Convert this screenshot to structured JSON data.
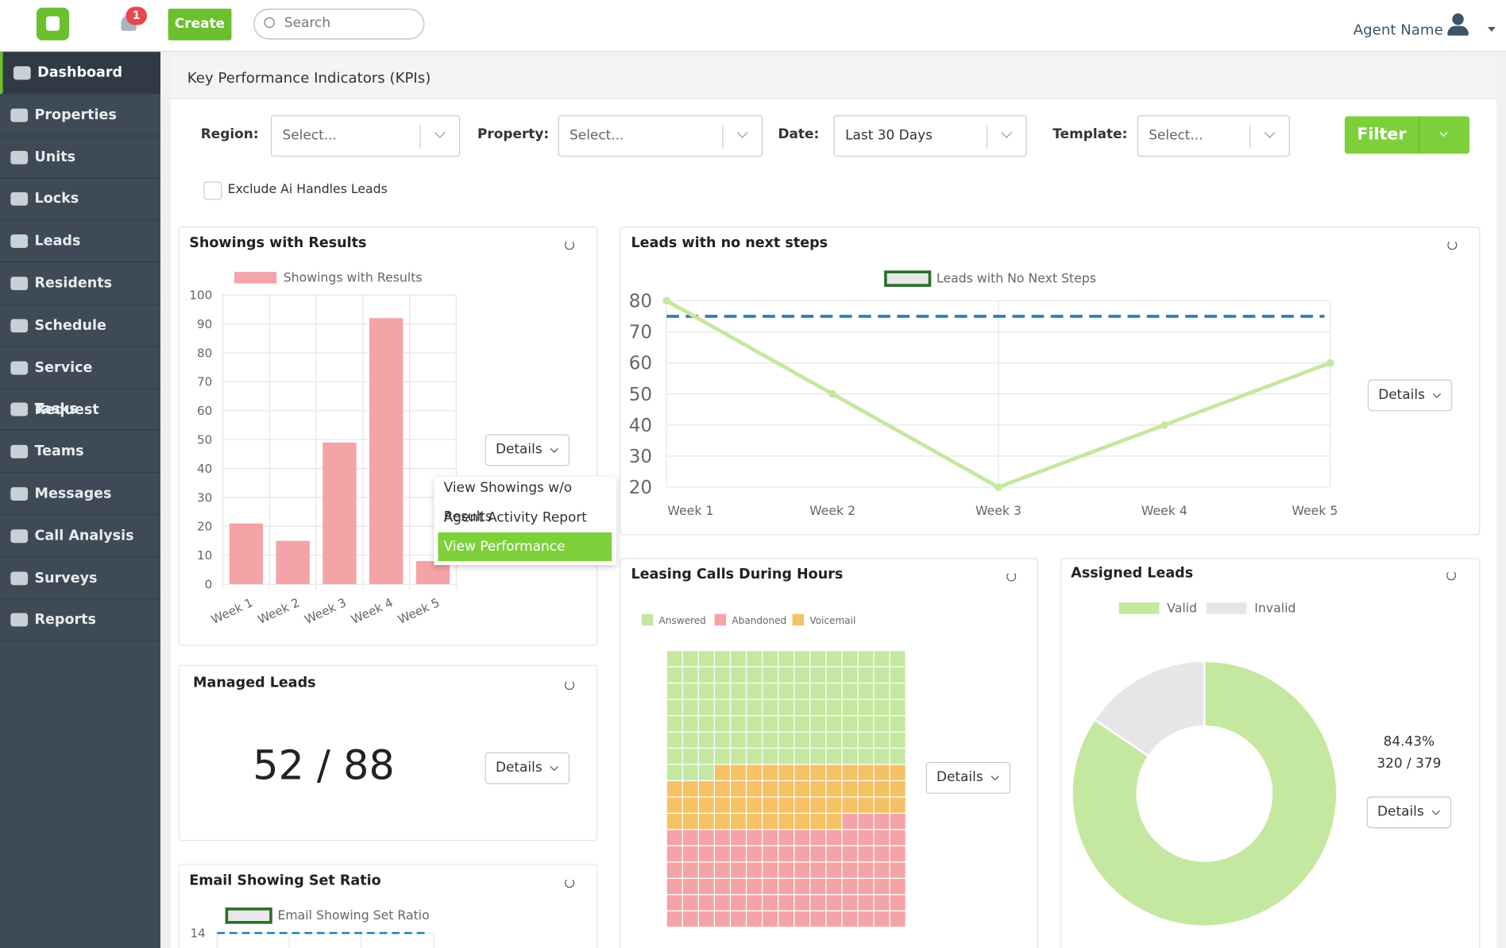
{
  "header": {
    "create": "Create",
    "search": "Search",
    "notifications": "1",
    "user": "Agent Name"
  },
  "sidebar": [
    "Dashboard",
    "Properties",
    "Units",
    "Locks",
    "Leads",
    "Residents",
    "Schedule",
    "Service Request",
    "Tasks",
    "Teams",
    "Messages",
    "Call Analysis",
    "Surveys",
    "Reports"
  ],
  "page_title": "Key Performance Indicators (KPIs)",
  "filters": {
    "fields": [
      {
        "label": "Region:",
        "value": "Select..."
      },
      {
        "label": "Property:",
        "value": "Select..."
      },
      {
        "label": "Date:",
        "value": "Last 30 Days"
      },
      {
        "label": "Template:",
        "value": "Select..."
      }
    ],
    "button": "Filter",
    "checkbox": "Exclude Ai Handles Leads"
  },
  "chart_data": [
    {
      "type": "bar",
      "title": "Showings with Results",
      "button": "Details",
      "menu": [
        "View Showings w/o Results",
        "Agent Activity Report",
        "View Performance"
      ],
      "categories": [
        "Week 1",
        "Week 2",
        "Week 3",
        "Week 4",
        "Week 5"
      ],
      "series": [
        {
          "name": "Showings with Results",
          "color": "#f4a3a6",
          "values": [
            21,
            15,
            49,
            92,
            8
          ]
        }
      ],
      "ylim": [
        0,
        100
      ],
      "yticks": [
        0,
        10,
        20,
        30,
        40,
        50,
        60,
        70,
        80,
        90,
        100
      ],
      "grid": true
    },
    {
      "type": "line",
      "title": "Leads with no next steps",
      "button": "Details",
      "categories": [
        "Week 1",
        "Week 2",
        "Week 3",
        "Week 4",
        "Week 5"
      ],
      "series": [
        {
          "name": "Leads with No Next Steps",
          "color": "#c5e8a0",
          "values": [
            80,
            50,
            20,
            40,
            60
          ]
        }
      ],
      "threshold": 75,
      "threshold_color": "#2a7bb0",
      "ylim": [
        20,
        80
      ],
      "yticks": [
        20,
        30,
        40,
        50,
        60,
        70,
        80
      ],
      "grid": true
    },
    {
      "type": "waffle",
      "title": "Leasing Calls During Hours",
      "button": "Details",
      "columns": 15,
      "series": [
        {
          "name": "Answered",
          "color": "#c5e8a0",
          "values": [
            108
          ]
        },
        {
          "name": "Abandoned",
          "color": "#f4a3a6",
          "values": [
            94
          ]
        },
        {
          "name": "Voicemail",
          "color": "#f5c162",
          "values": [
            53
          ]
        }
      ],
      "stack_order": [
        0,
        2,
        1
      ]
    },
    {
      "type": "pie",
      "title": "Assigned Leads",
      "button": "Details",
      "donut": true,
      "categories": [
        "Valid",
        "Invalid"
      ],
      "values": [
        320,
        59
      ],
      "colors": [
        "#c5e8a0",
        "#e6e6e6"
      ],
      "center_labels": [
        "84.43%",
        "320 / 379"
      ]
    },
    {
      "type": "kpi",
      "title": "Managed Leads",
      "button": "Details",
      "text": "52 / 88"
    },
    {
      "type": "line",
      "title": "Email Showing Set Ratio",
      "series": [
        {
          "name": "Email Showing Set Ratio",
          "color": "#c5e8a0"
        }
      ],
      "threshold": 14,
      "threshold_color": "#2a7bb0",
      "ylim": [
        0,
        14
      ],
      "yticks": [
        14
      ],
      "grid": true
    }
  ]
}
